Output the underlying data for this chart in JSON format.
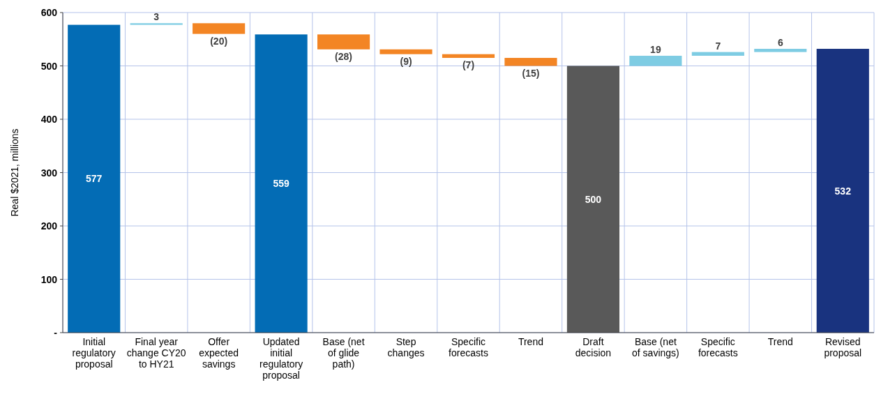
{
  "chart_data": {
    "type": "bar",
    "ylabel": "Real $2021, millions",
    "categories": [
      "Initial regulatory proposal",
      "Final year change CY20 to HY21",
      "Offer expected savings",
      "Updated initial regulatory proposal",
      "Base (net of glide path)",
      "Step changes",
      "Specific forecasts",
      "Trend",
      "Draft decision",
      "Base (net of savings)",
      "Specific forecasts",
      "Trend",
      "Revised proposal"
    ],
    "values": [
      577,
      3,
      -20,
      559,
      -28,
      -9,
      -7,
      -15,
      500,
      19,
      7,
      6,
      532
    ],
    "base": [
      0,
      577,
      580,
      0,
      559,
      531,
      522,
      515,
      0,
      500,
      519,
      526,
      0
    ],
    "colors": [
      "#036cb5",
      "#7ecce3",
      "#f38524",
      "#036cb5",
      "#f38524",
      "#f38524",
      "#f38524",
      "#f38524",
      "#595959",
      "#7ecce3",
      "#7ecce3",
      "#7ecce3",
      "#19337f"
    ],
    "value_labels": [
      "577",
      "3",
      "(20)",
      "559",
      "(28)",
      "(9)",
      "(7)",
      "(15)",
      "500",
      "19",
      "7",
      "6",
      "532"
    ],
    "ylim": [
      0,
      600
    ],
    "yticks": [
      {
        "value": 0,
        "label": "-"
      },
      100,
      200,
      300,
      400,
      500,
      600
    ],
    "grid": true
  }
}
